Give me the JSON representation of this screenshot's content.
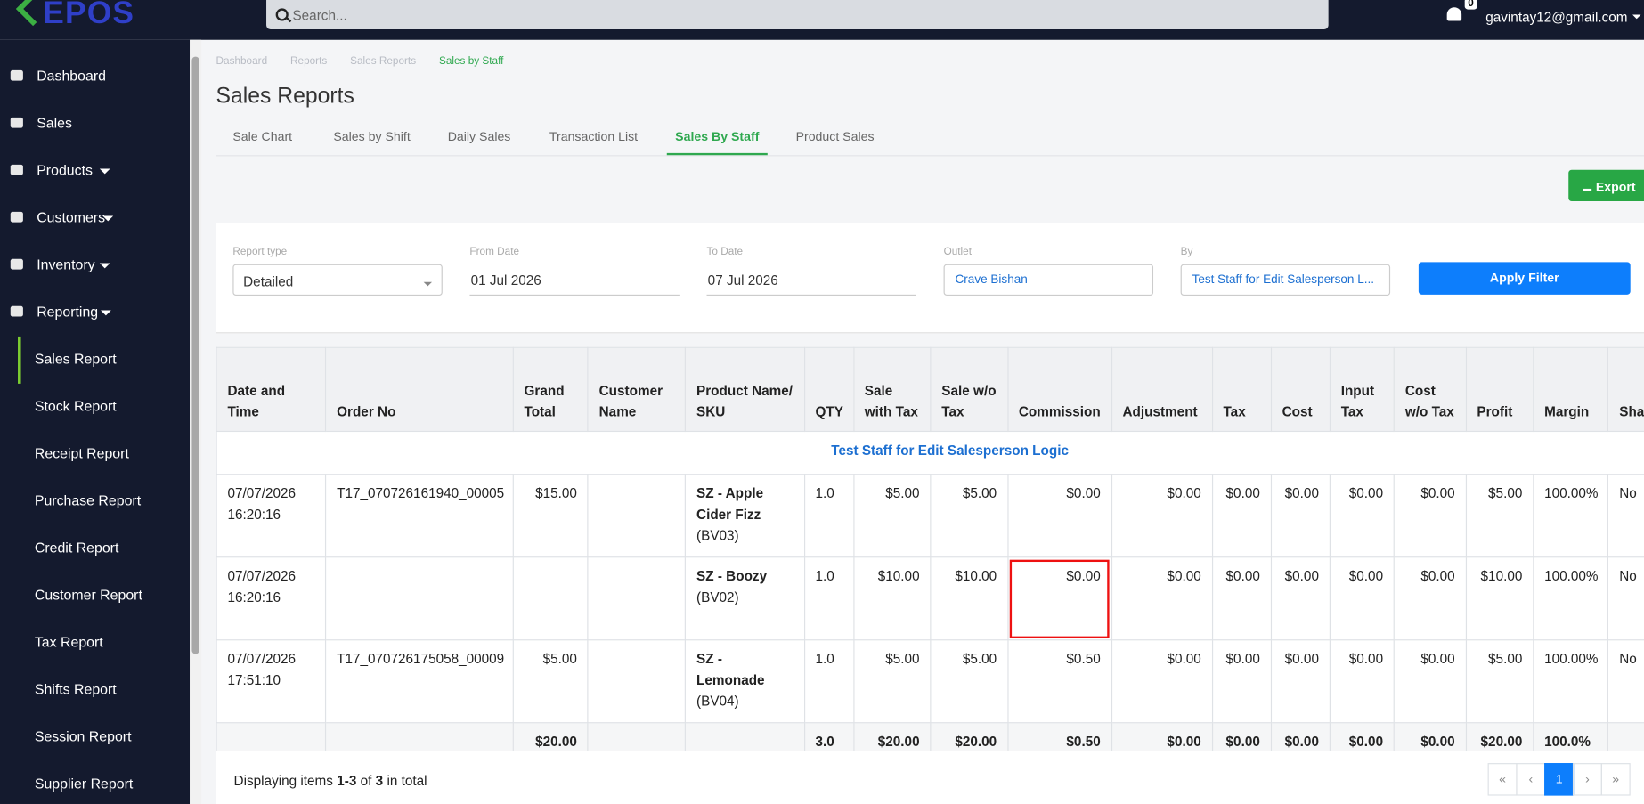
{
  "header": {
    "logo": "EPOS",
    "search_placeholder": "Search...",
    "notifications": "0",
    "user": "gavintay12@gmail.com"
  },
  "sidebar": {
    "items": [
      "Dashboard",
      "Sales",
      "Products",
      "Customers",
      "Inventory",
      "Reporting"
    ],
    "subitems": [
      "Sales Report",
      "Stock Report",
      "Receipt Report",
      "Purchase Report",
      "Credit Report",
      "Customer Report",
      "Tax Report",
      "Shifts Report",
      "Session Report",
      "Supplier Report"
    ]
  },
  "breadcrumb": [
    "Dashboard",
    "Reports",
    "Sales Reports",
    "Sales by Staff"
  ],
  "page_title": "Sales Reports",
  "tabs": [
    "Sale Chart",
    "Sales by Shift",
    "Daily Sales",
    "Transaction List",
    "Sales By Staff",
    "Product Sales"
  ],
  "export": "Export",
  "filters": {
    "report_type": {
      "label": "Report type",
      "value": "Detailed"
    },
    "from_date": {
      "label": "From Date",
      "value": "01 Jul 2026"
    },
    "to_date": {
      "label": "To Date",
      "value": "07 Jul 2026"
    },
    "outlet": {
      "label": "Outlet",
      "value": "Crave Bishan"
    },
    "by": {
      "label": "By",
      "value": "Test Staff for Edit Salesperson L..."
    },
    "apply": "Apply Filter"
  },
  "table": {
    "headers": [
      "Date and Time",
      "Order No",
      "Grand Total",
      "Customer Name",
      "Product Name/ SKU",
      "QTY",
      "Sale with Tax",
      "Sale w/o Tax",
      "Commission",
      "Adjustment",
      "Tax",
      "Cost",
      "Input Tax",
      "Cost w/o Tax",
      "Profit",
      "Margin",
      "Shared"
    ],
    "group": "Test Staff for Edit Salesperson Logic",
    "rows": [
      [
        "07/07/2026 16:20:16",
        "T17_070726161940_00005",
        "$15.00",
        "",
        {
          "name": "SZ - Apple Cider Fizz",
          "sku": "(BV03)"
        },
        "1.0",
        "$5.00",
        "$5.00",
        "$0.00",
        "$0.00",
        "$0.00",
        "$0.00",
        "$0.00",
        "$0.00",
        "$5.00",
        "100.00%",
        "No"
      ],
      [
        "07/07/2026 16:20:16",
        "",
        "",
        "",
        {
          "name": "SZ - Boozy",
          "sku": "(BV02)"
        },
        "1.0",
        "$10.00",
        "$10.00",
        "$0.00",
        "$0.00",
        "$0.00",
        "$0.00",
        "$0.00",
        "$0.00",
        "$10.00",
        "100.00%",
        "No"
      ],
      [
        "07/07/2026 17:51:10",
        "T17_070726175058_00009",
        "$5.00",
        "",
        {
          "name": "SZ - Lemonade",
          "sku": "(BV04)"
        },
        "1.0",
        "$5.00",
        "$5.00",
        "$0.50",
        "$0.00",
        "$0.00",
        "$0.00",
        "$0.00",
        "$0.00",
        "$5.00",
        "100.00%",
        "No"
      ]
    ],
    "totals": [
      "",
      "",
      "$20.00",
      "",
      "",
      "3.0",
      "$20.00",
      "$20.00",
      "$0.50",
      "$0.00",
      "$0.00",
      "$0.00",
      "$0.00",
      "$0.00",
      "$20.00",
      "100.0%",
      ""
    ]
  },
  "footer": {
    "prefix": "Displaying items",
    "range": "1-3",
    "of": "of",
    "total": "3",
    "suffix": "in total"
  },
  "pagination": [
    "«",
    "‹",
    "1",
    "›",
    "»"
  ]
}
